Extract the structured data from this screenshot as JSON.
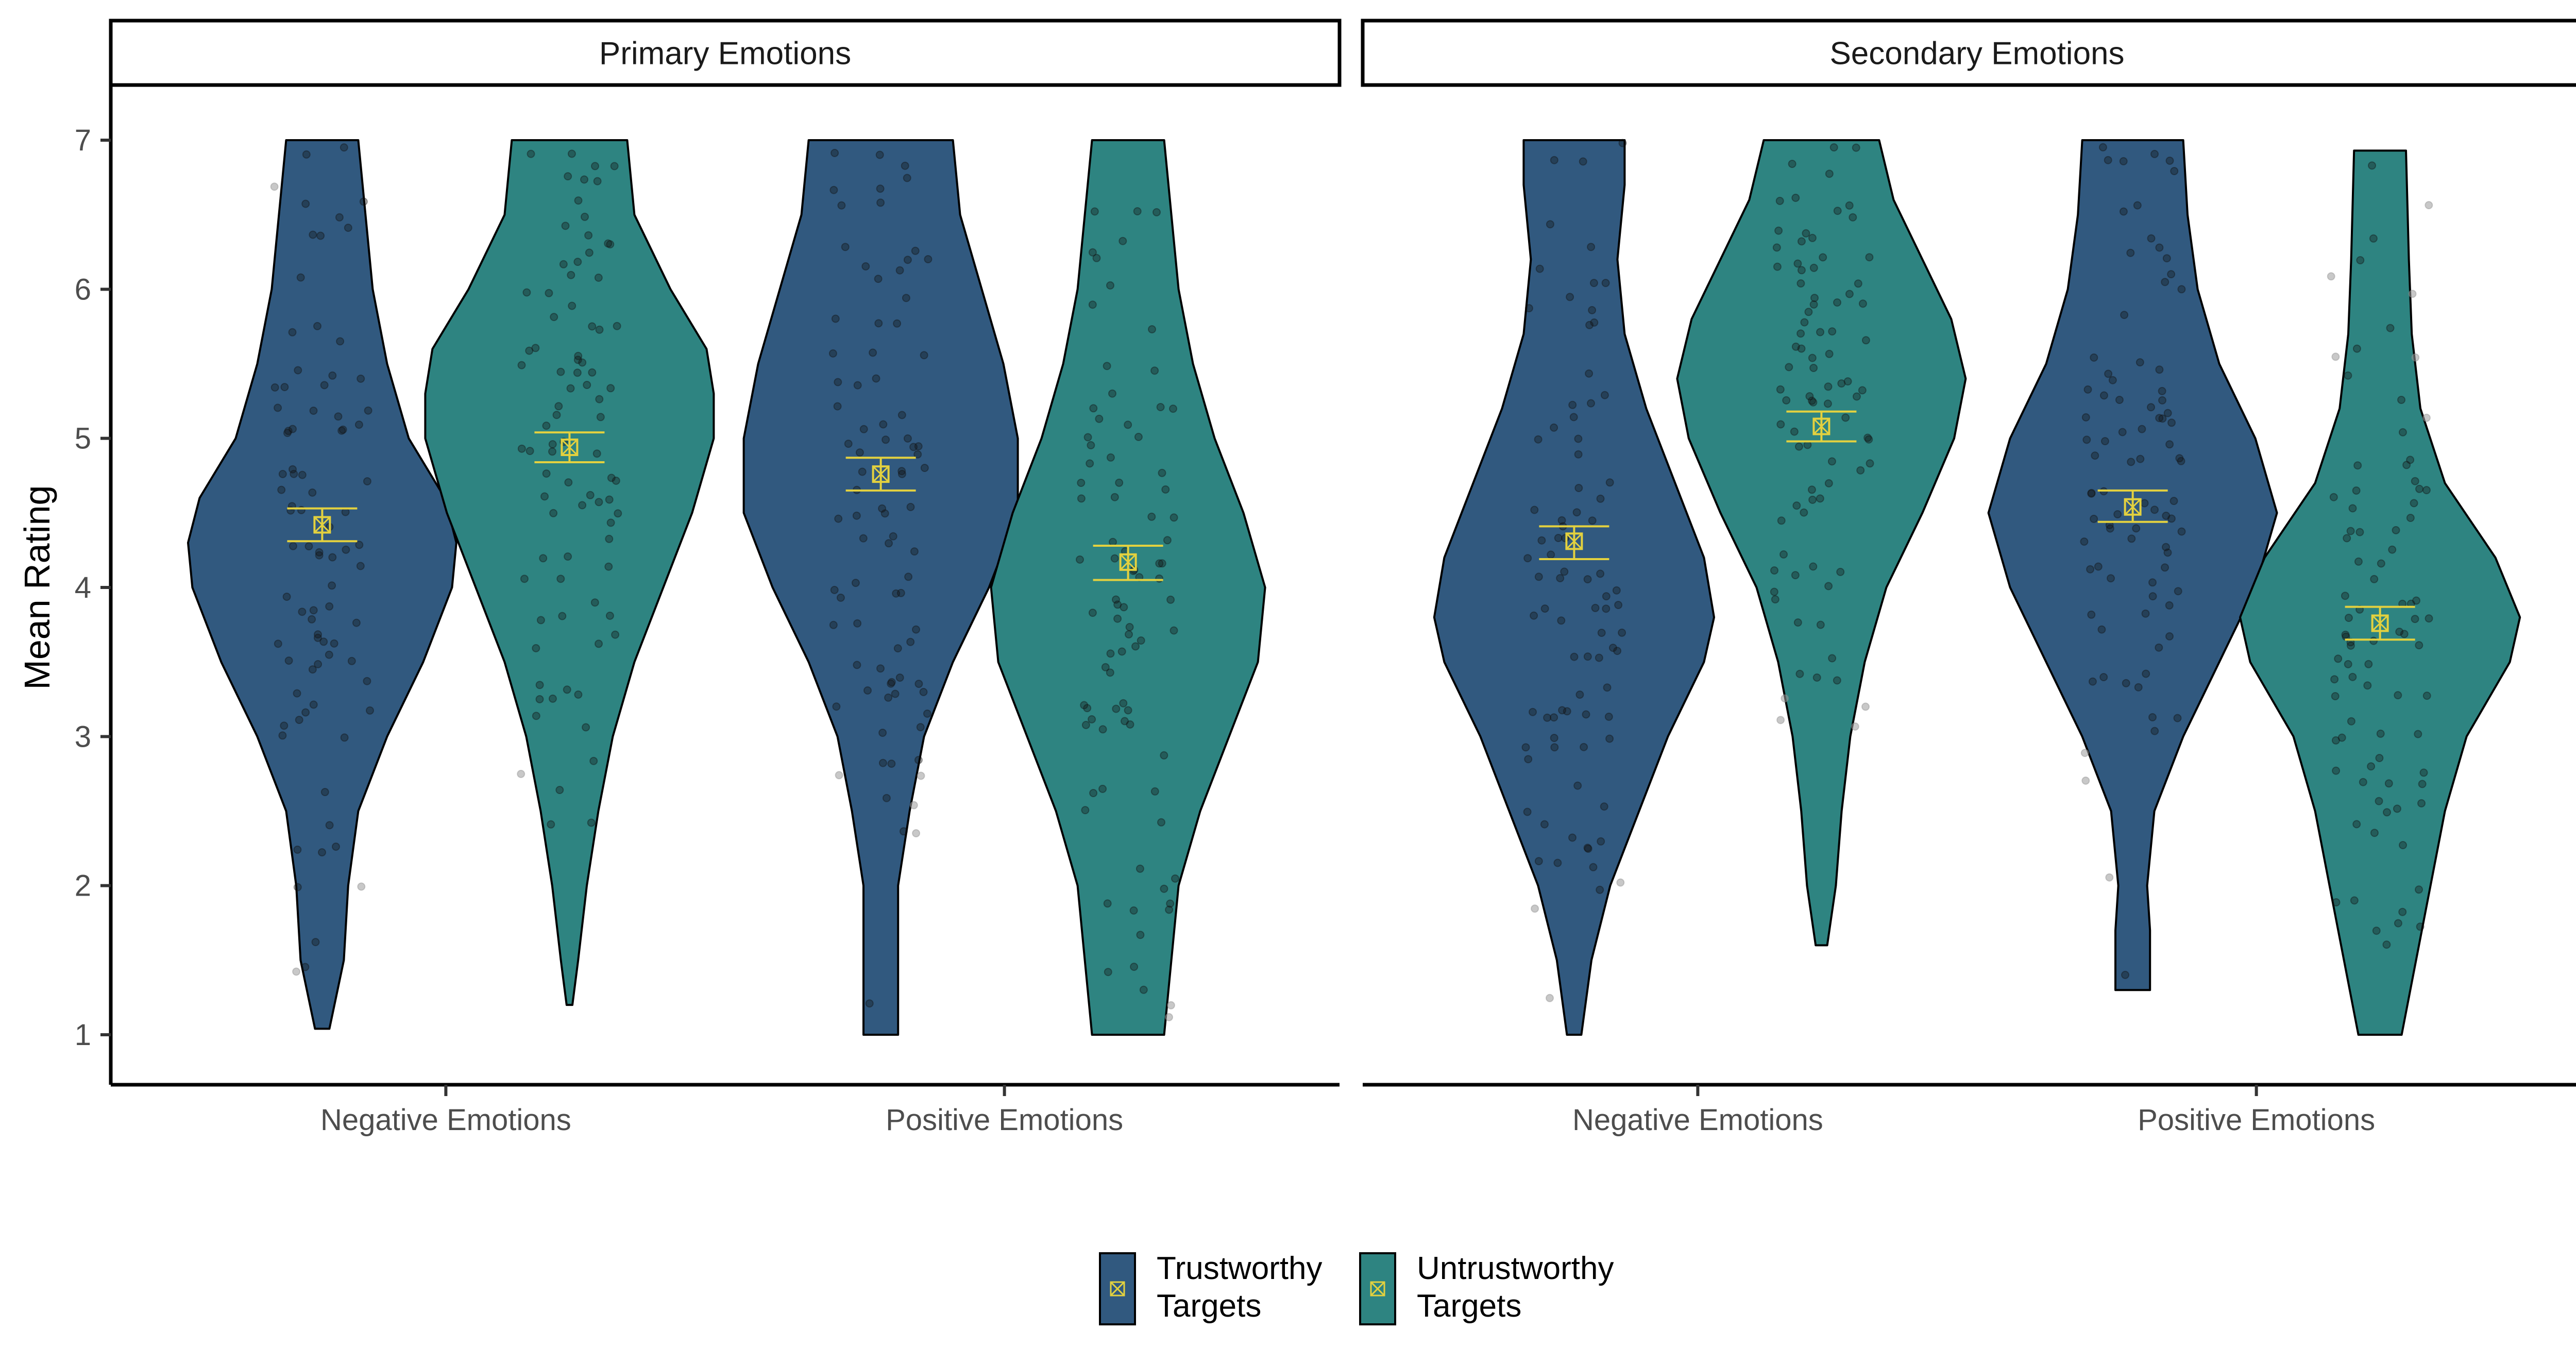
{
  "chart_data": {
    "type": "violin",
    "ylabel": "Mean Rating",
    "ylim": [
      1,
      7
    ],
    "yticks": [
      "1",
      "2",
      "3",
      "4",
      "5",
      "6",
      "7"
    ],
    "categories": [
      "Negative Emotions",
      "Positive Emotions"
    ],
    "facets": [
      {
        "label": "Primary Emotions",
        "groups": [
          {
            "category": "Negative Emotions",
            "series": "Trustworthy Targets",
            "mean": 4.42,
            "ci": [
              4.31,
              4.53
            ],
            "min": 1.04,
            "max": 7.0,
            "profile": [
              [
                1.04,
                0.05
              ],
              [
                1.5,
                0.15
              ],
              [
                2.0,
                0.18
              ],
              [
                2.5,
                0.25
              ],
              [
                3.0,
                0.45
              ],
              [
                3.5,
                0.7
              ],
              [
                4.0,
                0.9
              ],
              [
                4.3,
                0.93
              ],
              [
                4.6,
                0.85
              ],
              [
                5.0,
                0.6
              ],
              [
                5.5,
                0.45
              ],
              [
                6.0,
                0.35
              ],
              [
                6.5,
                0.3
              ],
              [
                7.0,
                0.25
              ]
            ]
          },
          {
            "category": "Negative Emotions",
            "series": "Untrustworthy Targets",
            "mean": 4.94,
            "ci": [
              4.84,
              5.04
            ],
            "min": 1.2,
            "max": 7.0,
            "profile": [
              [
                1.2,
                0.02
              ],
              [
                1.5,
                0.06
              ],
              [
                2.0,
                0.12
              ],
              [
                2.5,
                0.2
              ],
              [
                3.0,
                0.3
              ],
              [
                3.5,
                0.45
              ],
              [
                4.0,
                0.65
              ],
              [
                4.5,
                0.85
              ],
              [
                5.0,
                1.0
              ],
              [
                5.3,
                1.0
              ],
              [
                5.6,
                0.95
              ],
              [
                6.0,
                0.7
              ],
              [
                6.5,
                0.45
              ],
              [
                7.0,
                0.4
              ]
            ]
          },
          {
            "category": "Positive Emotions",
            "series": "Trustworthy Targets",
            "mean": 4.76,
            "ci": [
              4.65,
              4.87
            ],
            "min": 1.0,
            "max": 7.0,
            "profile": [
              [
                1.0,
                0.12
              ],
              [
                1.5,
                0.12
              ],
              [
                2.0,
                0.12
              ],
              [
                2.5,
                0.2
              ],
              [
                3.0,
                0.3
              ],
              [
                3.5,
                0.5
              ],
              [
                4.0,
                0.75
              ],
              [
                4.5,
                0.95
              ],
              [
                5.0,
                0.95
              ],
              [
                5.5,
                0.85
              ],
              [
                6.0,
                0.7
              ],
              [
                6.5,
                0.55
              ],
              [
                7.0,
                0.5
              ]
            ]
          },
          {
            "category": "Positive Emotions",
            "series": "Untrustworthy Targets",
            "mean": 4.17,
            "ci": [
              4.05,
              4.28
            ],
            "min": 1.0,
            "max": 7.0,
            "profile": [
              [
                1.0,
                0.25
              ],
              [
                1.5,
                0.3
              ],
              [
                2.0,
                0.35
              ],
              [
                2.5,
                0.5
              ],
              [
                3.0,
                0.7
              ],
              [
                3.5,
                0.9
              ],
              [
                4.0,
                0.95
              ],
              [
                4.5,
                0.8
              ],
              [
                5.0,
                0.6
              ],
              [
                5.5,
                0.45
              ],
              [
                6.0,
                0.35
              ],
              [
                6.5,
                0.3
              ],
              [
                7.0,
                0.25
              ]
            ]
          }
        ]
      },
      {
        "label": "Secondary Emotions",
        "groups": [
          {
            "category": "Negative Emotions",
            "series": "Trustworthy Targets",
            "mean": 4.31,
            "ci": [
              4.19,
              4.41
            ],
            "min": 1.0,
            "max": 7.0,
            "profile": [
              [
                1.0,
                0.05
              ],
              [
                1.5,
                0.12
              ],
              [
                2.0,
                0.25
              ],
              [
                2.5,
                0.45
              ],
              [
                3.0,
                0.65
              ],
              [
                3.5,
                0.9
              ],
              [
                3.8,
                0.97
              ],
              [
                4.2,
                0.9
              ],
              [
                4.7,
                0.7
              ],
              [
                5.2,
                0.5
              ],
              [
                5.7,
                0.35
              ],
              [
                6.2,
                0.3
              ],
              [
                6.7,
                0.35
              ],
              [
                7.0,
                0.35
              ]
            ]
          },
          {
            "category": "Negative Emotions",
            "series": "Untrustworthy Targets",
            "mean": 5.08,
            "ci": [
              4.98,
              5.18
            ],
            "min": 1.6,
            "max": 7.0,
            "profile": [
              [
                1.6,
                0.04
              ],
              [
                2.0,
                0.1
              ],
              [
                2.5,
                0.14
              ],
              [
                3.0,
                0.2
              ],
              [
                3.5,
                0.3
              ],
              [
                4.0,
                0.45
              ],
              [
                4.5,
                0.7
              ],
              [
                5.0,
                0.92
              ],
              [
                5.4,
                1.0
              ],
              [
                5.8,
                0.9
              ],
              [
                6.2,
                0.7
              ],
              [
                6.6,
                0.5
              ],
              [
                7.0,
                0.4
              ]
            ]
          },
          {
            "category": "Positive Emotions",
            "series": "Trustworthy Targets",
            "mean": 4.54,
            "ci": [
              4.44,
              4.65
            ],
            "min": 1.3,
            "max": 7.0,
            "profile": [
              [
                1.3,
                0.12
              ],
              [
                1.7,
                0.12
              ],
              [
                2.0,
                0.1
              ],
              [
                2.5,
                0.15
              ],
              [
                3.0,
                0.35
              ],
              [
                3.5,
                0.6
              ],
              [
                4.0,
                0.85
              ],
              [
                4.5,
                1.0
              ],
              [
                5.0,
                0.85
              ],
              [
                5.5,
                0.6
              ],
              [
                6.0,
                0.45
              ],
              [
                6.5,
                0.38
              ],
              [
                7.0,
                0.35
              ]
            ]
          },
          {
            "category": "Positive Emotions",
            "series": "Untrustworthy Targets",
            "mean": 3.76,
            "ci": [
              3.65,
              3.87
            ],
            "min": 1.0,
            "max": 6.93,
            "profile": [
              [
                1.0,
                0.15
              ],
              [
                1.5,
                0.25
              ],
              [
                2.0,
                0.35
              ],
              [
                2.5,
                0.45
              ],
              [
                3.0,
                0.6
              ],
              [
                3.5,
                0.9
              ],
              [
                3.8,
                0.97
              ],
              [
                4.2,
                0.8
              ],
              [
                4.7,
                0.45
              ],
              [
                5.2,
                0.28
              ],
              [
                5.7,
                0.22
              ],
              [
                6.2,
                0.2
              ],
              [
                6.93,
                0.18
              ]
            ]
          }
        ]
      }
    ],
    "legend": {
      "position": "bottom",
      "entries": [
        {
          "label_line1": "Trustworthy",
          "label_line2": "Targets",
          "color": "#31597f"
        },
        {
          "label_line1": "Untrustworthy",
          "label_line2": "Targets",
          "color": "#2e8481"
        }
      ]
    },
    "mean_marker_color": "#e3d13f",
    "point_color": "#1a1a1a",
    "grid": false
  }
}
